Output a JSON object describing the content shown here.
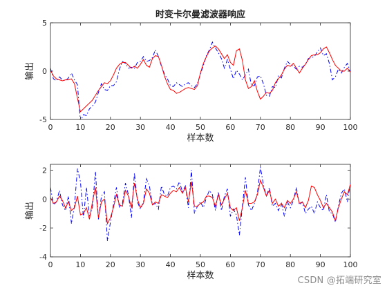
{
  "chart_data": [
    {
      "type": "line",
      "title": "时变卡尔曼滤波器响应",
      "xlabel": "样本数",
      "ylabel": "输出",
      "xlim": [
        0,
        100
      ],
      "ylim": [
        -5,
        5
      ],
      "xticks": [
        0,
        10,
        20,
        30,
        40,
        50,
        60,
        70,
        80,
        90,
        100
      ],
      "yticks": [
        -5,
        0,
        5
      ],
      "grid": false,
      "legend": "none",
      "series": [
        {
          "color": "#0000ff",
          "style": "dash-dot",
          "x": [
            0,
            1,
            2,
            3,
            4,
            5,
            6,
            7,
            8,
            9,
            10,
            11,
            12,
            13,
            14,
            15,
            16,
            17,
            18,
            19,
            20,
            21,
            22,
            23,
            24,
            25,
            26,
            27,
            28,
            29,
            30,
            31,
            32,
            33,
            34,
            35,
            36,
            37,
            38,
            39,
            40,
            41,
            42,
            43,
            44,
            45,
            46,
            47,
            48,
            49,
            50,
            51,
            52,
            53,
            54,
            55,
            56,
            57,
            58,
            59,
            60,
            61,
            62,
            63,
            64,
            65,
            66,
            67,
            68,
            69,
            70,
            71,
            72,
            73,
            74,
            75,
            76,
            77,
            78,
            79,
            80,
            81,
            82,
            83,
            84,
            85,
            86,
            87,
            88,
            89,
            90,
            91,
            92,
            93,
            94,
            95,
            96,
            97,
            98,
            99,
            100
          ],
          "y": [
            0.3,
            -0.8,
            -1.0,
            -0.6,
            -0.9,
            -1.0,
            -0.7,
            -0.2,
            -0.9,
            -1.4,
            -5.2,
            -4.5,
            -4.6,
            -3.9,
            -3.6,
            -3.2,
            -2.2,
            -1.3,
            -1.9,
            -2.0,
            -1.5,
            -1.5,
            -1.1,
            0.2,
            1.0,
            0.8,
            0.3,
            0.4,
            0.3,
            0.9,
            1.0,
            1.5,
            1.0,
            1.1,
            1.4,
            2.2,
            1.5,
            0.5,
            -0.3,
            -0.8,
            -1.5,
            -1.6,
            -1.2,
            -1.4,
            -1.6,
            -1.3,
            -1.2,
            -1.5,
            -1.7,
            -1.3,
            -0.3,
            0.6,
            1.6,
            2.2,
            3.0,
            2.4,
            1.9,
            1.3,
            0.3,
            1.2,
            0.2,
            -0.8,
            0.1,
            -0.3,
            -0.9,
            -0.4,
            0.2,
            -1.5,
            -1.5,
            -0.6,
            -0.5,
            -1.3,
            -2.5,
            -2.6,
            -1.6,
            -1.7,
            -0.5,
            -0.7,
            0.3,
            1.0,
            0.7,
            0.5,
            0.2,
            0.5,
            0.4,
            0.7,
            1.3,
            1.4,
            1.5,
            2.0,
            2.4,
            1.6,
            1.8,
            0.8,
            -0.9,
            -0.6,
            0.2,
            -0.2,
            0.4,
            0.8,
            -0.1
          ]
        },
        {
          "color": "#ff0000",
          "style": "solid",
          "x": [
            0,
            1,
            2,
            3,
            4,
            5,
            6,
            7,
            8,
            9,
            10,
            11,
            12,
            13,
            14,
            15,
            16,
            17,
            18,
            19,
            20,
            21,
            22,
            23,
            24,
            25,
            26,
            27,
            28,
            29,
            30,
            31,
            32,
            33,
            34,
            35,
            36,
            37,
            38,
            39,
            40,
            41,
            42,
            43,
            44,
            45,
            46,
            47,
            48,
            49,
            50,
            51,
            52,
            53,
            54,
            55,
            56,
            57,
            58,
            59,
            60,
            61,
            62,
            63,
            64,
            65,
            66,
            67,
            68,
            69,
            70,
            71,
            72,
            73,
            74,
            75,
            76,
            77,
            78,
            79,
            80,
            81,
            82,
            83,
            84,
            85,
            86,
            87,
            88,
            89,
            90,
            91,
            92,
            93,
            94,
            95,
            96,
            97,
            98,
            99,
            100
          ],
          "y": [
            0.1,
            -0.5,
            -0.8,
            -0.9,
            -1.0,
            -0.9,
            -0.9,
            -0.8,
            -1.3,
            -2.8,
            -4.2,
            -3.9,
            -3.6,
            -3.3,
            -3.0,
            -2.5,
            -2.0,
            -1.6,
            -1.2,
            -1.3,
            -1.0,
            -0.4,
            0.3,
            0.7,
            0.9,
            0.9,
            0.6,
            0.3,
            0.5,
            0.3,
            0.7,
            1.2,
            0.6,
            0.4,
            1.3,
            1.6,
            1.5,
            0.6,
            -0.5,
            -1.3,
            -1.9,
            -2.0,
            -2.3,
            -2.2,
            -2.0,
            -1.8,
            -1.7,
            -1.8,
            -1.9,
            -1.5,
            -0.2,
            0.8,
            1.5,
            2.1,
            2.4,
            2.6,
            2.3,
            1.8,
            1.3,
            1.7,
            0.9,
            0.6,
            2.1,
            2.3,
            1.1,
            -0.9,
            -1.8,
            -1.6,
            -1.0,
            -2.1,
            -2.9,
            -2.6,
            -2.2,
            -2.3,
            -2.0,
            -1.2,
            -0.8,
            -0.4,
            0.2,
            0.6,
            0.5,
            0.8,
            0.3,
            -0.2,
            0.3,
            0.7,
            1.2,
            1.6,
            1.7,
            1.7,
            1.9,
            2.3,
            2.5,
            1.9,
            1.2,
            0.6,
            0.3,
            0.0,
            0.0,
            0.3,
            -0.1
          ]
        }
      ]
    },
    {
      "type": "line",
      "title": "",
      "xlabel": "样本数",
      "ylabel": "输出",
      "xlim": [
        0,
        100
      ],
      "ylim": [
        -4,
        2.4
      ],
      "xticks": [
        0,
        10,
        20,
        30,
        40,
        50,
        60,
        70,
        80,
        90,
        100
      ],
      "yticks": [
        -4,
        -2,
        0,
        2
      ],
      "grid": false,
      "legend": "none",
      "series": [
        {
          "color": "#0000ff",
          "style": "dash-dot",
          "x": [
            0,
            1,
            2,
            3,
            4,
            5,
            6,
            7,
            8,
            9,
            10,
            11,
            12,
            13,
            14,
            15,
            16,
            17,
            18,
            19,
            20,
            21,
            22,
            23,
            24,
            25,
            26,
            27,
            28,
            29,
            30,
            31,
            32,
            33,
            34,
            35,
            36,
            37,
            38,
            39,
            40,
            41,
            42,
            43,
            44,
            45,
            46,
            47,
            48,
            49,
            50,
            51,
            52,
            53,
            54,
            55,
            56,
            57,
            58,
            59,
            60,
            61,
            62,
            63,
            64,
            65,
            66,
            67,
            68,
            69,
            70,
            71,
            72,
            73,
            74,
            75,
            76,
            77,
            78,
            79,
            80,
            81,
            82,
            83,
            84,
            85,
            86,
            87,
            88,
            89,
            90,
            91,
            92,
            93,
            94,
            95,
            96,
            97,
            98,
            99,
            100
          ],
          "y": [
            0.8,
            -0.4,
            -0.2,
            0.6,
            -0.4,
            -0.8,
            0.2,
            -1.7,
            -0.5,
            2.1,
            1.2,
            -1.3,
            0.8,
            -1.2,
            -0.6,
            1.9,
            -1.4,
            0.2,
            0.5,
            -2.9,
            -1.6,
            -0.4,
            0.8,
            -0.6,
            -0.3,
            1.1,
            0.3,
            -1.3,
            1.8,
            -0.2,
            -0.7,
            -0.2,
            1.4,
            0.9,
            -0.4,
            -0.3,
            -0.7,
            0.9,
            0.3,
            0.2,
            0.8,
            0.9,
            0.7,
            1.2,
            0.5,
            0.9,
            -0.6,
            2.0,
            -1.0,
            -0.5,
            -0.2,
            -0.6,
            0.1,
            0.6,
            0.3,
            -0.8,
            0.5,
            -0.8,
            0.2,
            0.7,
            -1.2,
            -0.7,
            -1.1,
            -2.5,
            -0.5,
            1.5,
            -0.4,
            -0.8,
            -0.3,
            0.4,
            2.2,
            1.0,
            0.2,
            0.8,
            -0.5,
            -0.3,
            -0.8,
            -0.3,
            -1.2,
            -0.2,
            -0.6,
            -0.1,
            0.8,
            -0.4,
            -0.2,
            -1.0,
            -0.7,
            -0.5,
            -1.0,
            -0.2,
            -0.6,
            -0.8,
            0.3,
            -0.9,
            -1.0,
            -1.6,
            -0.5,
            0.4,
            0.7,
            -0.2,
            1.1
          ]
        },
        {
          "color": "#ff0000",
          "style": "solid",
          "x": [
            0,
            1,
            2,
            3,
            4,
            5,
            6,
            7,
            8,
            9,
            10,
            11,
            12,
            13,
            14,
            15,
            16,
            17,
            18,
            19,
            20,
            21,
            22,
            23,
            24,
            25,
            26,
            27,
            28,
            29,
            30,
            31,
            32,
            33,
            34,
            35,
            36,
            37,
            38,
            39,
            40,
            41,
            42,
            43,
            44,
            45,
            46,
            47,
            48,
            49,
            50,
            51,
            52,
            53,
            54,
            55,
            56,
            57,
            58,
            59,
            60,
            61,
            62,
            63,
            64,
            65,
            66,
            67,
            68,
            69,
            70,
            71,
            72,
            73,
            74,
            75,
            76,
            77,
            78,
            79,
            80,
            81,
            82,
            83,
            84,
            85,
            86,
            87,
            88,
            89,
            90,
            91,
            92,
            93,
            94,
            95,
            96,
            97,
            98,
            99,
            100
          ],
          "y": [
            0.1,
            -0.3,
            -0.2,
            0.2,
            -0.1,
            -0.6,
            -0.2,
            -0.8,
            -0.6,
            0.2,
            -1.1,
            -1.0,
            -0.6,
            -1.4,
            -0.2,
            0.8,
            -1.3,
            -0.2,
            0.0,
            -1.7,
            -1.3,
            -0.6,
            0.3,
            -0.4,
            -0.5,
            0.6,
            0.2,
            -0.6,
            1.1,
            0.0,
            -0.6,
            -0.3,
            0.7,
            0.4,
            -0.4,
            -0.2,
            -0.3,
            0.3,
            0.2,
            0.1,
            0.4,
            0.6,
            0.5,
            0.8,
            0.4,
            0.8,
            -0.2,
            1.2,
            -0.5,
            -0.5,
            -0.3,
            -0.2,
            0.2,
            0.2,
            0.1,
            -0.5,
            0.3,
            -0.4,
            0.0,
            0.4,
            -0.6,
            -0.8,
            -0.6,
            -1.5,
            -0.6,
            0.6,
            -0.3,
            -0.3,
            -0.2,
            0.3,
            1.3,
            0.8,
            0.2,
            0.6,
            -0.3,
            0.0,
            -0.5,
            -0.3,
            -0.6,
            -0.1,
            -0.3,
            0.0,
            0.5,
            -0.3,
            -0.2,
            -0.6,
            -0.1,
            0.9,
            0.8,
            0.3,
            -0.1,
            -0.6,
            -0.3,
            -0.6,
            -0.9,
            -1.5,
            -0.6,
            0.0,
            0.5,
            0.3,
            1.0
          ]
        }
      ]
    }
  ],
  "watermark": "CSDN @拓端研究室"
}
